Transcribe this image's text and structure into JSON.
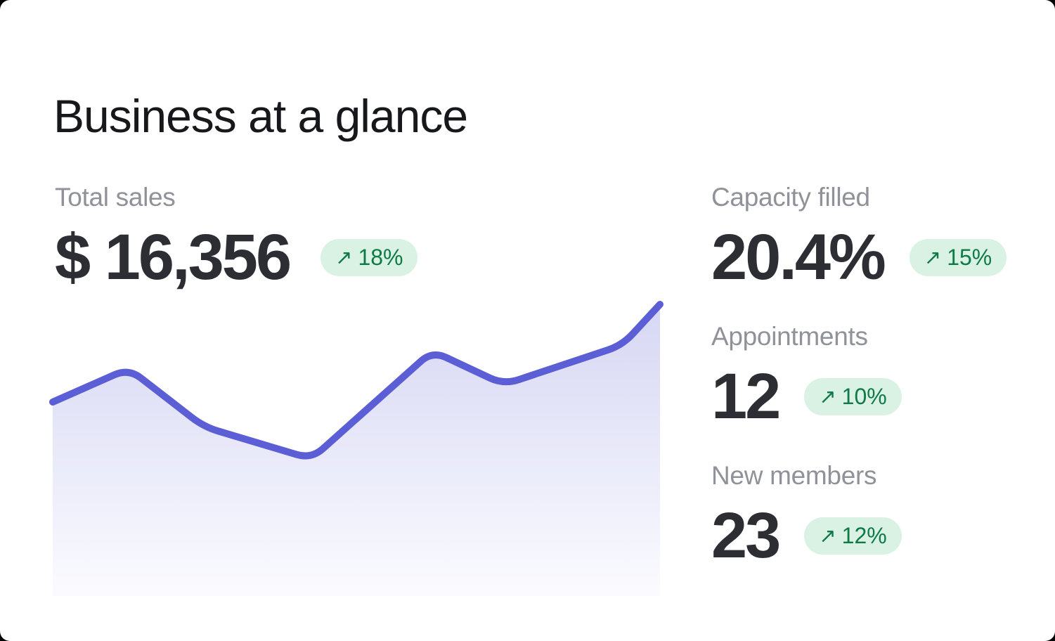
{
  "page": {
    "title": "Business at a glance"
  },
  "colors": {
    "page_bg": "#000000",
    "card_bg": "#ffffff",
    "title_text": "#17181c",
    "label_text": "#8f9298",
    "value_text": "#2c2e34",
    "badge_bg": "#daf2e4",
    "badge_text": "#0f7a47",
    "line": "#5c5ed6",
    "area_top": "#d6d7f3",
    "area_bottom": "#fbfbff"
  },
  "icons": {
    "trend_up": "↗"
  },
  "stats": [
    {
      "id": "total-sales",
      "label": "Total sales",
      "value": "$ 16,356",
      "change": "18%"
    },
    {
      "id": "capacity-filled",
      "label": "Capacity filled",
      "value": "20.4%",
      "change": "15%"
    },
    {
      "id": "appointments",
      "label": "Appointments",
      "value": "12",
      "change": "10%"
    },
    {
      "id": "new-members",
      "label": "New members",
      "value": "23",
      "change": "12%"
    }
  ],
  "chart_data": {
    "type": "area",
    "title": "Total sales trend (decorative sparkline, no axes or tick labels shown)",
    "x": [
      0,
      12.5,
      24.9,
      42.6,
      62.5,
      74.3,
      93.8,
      100
    ],
    "values": [
      66.5,
      78,
      58,
      47,
      84,
      72.5,
      86,
      100
    ],
    "xlabel": "",
    "ylabel": "",
    "xlim": [
      0,
      100
    ],
    "ylim": [
      0,
      100
    ],
    "grid": false,
    "legend": false,
    "line_color": "#5c5ed6",
    "line_width": 10,
    "fill_gradient": [
      "#d6d7f3",
      "#fbfbff"
    ],
    "smoothing": "rounded-corners"
  }
}
